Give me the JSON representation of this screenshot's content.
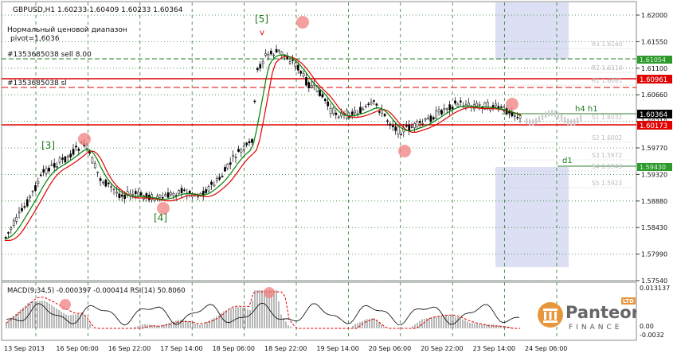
{
  "window": {
    "symbol_label": "GBPUSD,H1",
    "ohlc": "1.60233 1.60409 1.60233 1.60364"
  },
  "overlays": {
    "indicator_name": "Нормальный ценовой диапазон",
    "pivot": "pivot=1,6036",
    "order1": "#1353685038 sell 8.00",
    "order2": "#1353685038 sl",
    "wave3": "[3]",
    "wave4": "[4]",
    "wave5": "[5]",
    "wave5_mark": "v",
    "tf_label": "h4 h1",
    "tf_d1": "d1"
  },
  "price_axis": {
    "ticks": [
      "1.62000",
      "1.61550",
      "1.61100",
      "1.60660",
      "1.60210",
      "1.59770",
      "1.59320",
      "1.58880",
      "1.58430",
      "1.57990",
      "1.57540"
    ],
    "current_price": "1.60364",
    "level_high": "1.60961",
    "level_low": "1.60173"
  },
  "levels": {
    "r3": "R3 1.6160",
    "r2": "R2 1.6110",
    "r1": "R1 1.6081",
    "s1": "S1 1.6032",
    "s2": "S2 1.6002",
    "s3": "S3 1.5972",
    "s4": "S4 1.5943",
    "s5": "S5 1.5923",
    "box1": "1.61054",
    "box2": "1.59430"
  },
  "time_axis": [
    "13 Sep 2013",
    "16 Sep 06:00",
    "16 Sep 22:00",
    "17 Sep 14:00",
    "18 Sep 06:00",
    "18 Sep 22:00",
    "19 Sep 14:00",
    "20 Sep 06:00",
    "20 Sep 22:00",
    "23 Sep 14:00",
    "24 Sep 06:00"
  ],
  "sub_window": {
    "label": "MACD(9,34,5) -0.000397 -0.000414  RSI(14) 50.8060",
    "ticks": [
      "0.013137",
      "0.00",
      "-0.0032"
    ]
  },
  "logo": {
    "name": "Panteon",
    "sub": "FINANCE",
    "badge": "LTD"
  },
  "colors": {
    "bull": "#ffffff",
    "bear": "#000000",
    "red_line": "#e00000",
    "green_ma": "#008000",
    "red_ma": "#e00000",
    "grid": "#1a7a1a",
    "shade": "#dde0f4"
  }
}
